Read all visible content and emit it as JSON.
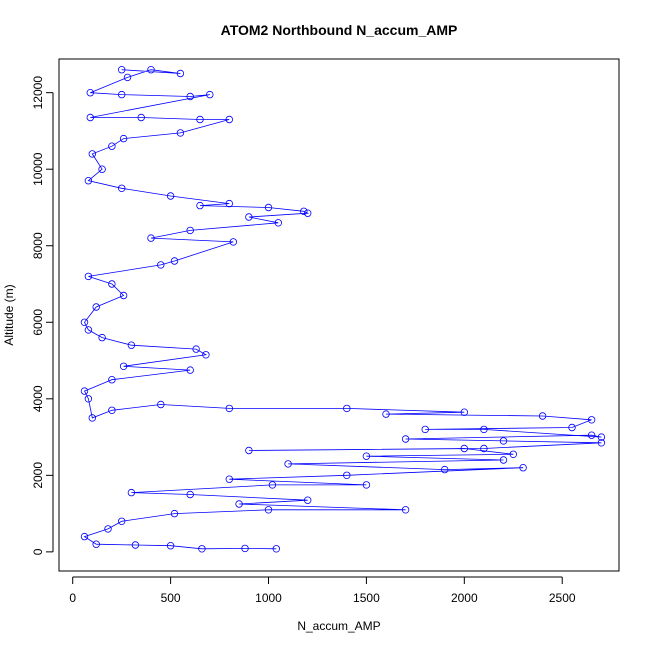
{
  "chart_data": {
    "type": "scatter",
    "title": "ATOM2 Northbound N_accum_AMP",
    "xlabel": "N_accum_AMP",
    "ylabel": "Altitude (m)",
    "xlim": [
      -70,
      2790
    ],
    "ylim": [
      -500,
      12880
    ],
    "x_ticks": [
      0,
      500,
      1000,
      1500,
      2000,
      2500
    ],
    "y_ticks": [
      0,
      2000,
      4000,
      6000,
      8000,
      10000,
      12000
    ],
    "grid": false,
    "legend": "none",
    "series": [
      {
        "marker": "open-circle",
        "line": "connected",
        "color": "#0000ff",
        "points": [
          [
            1040,
            80
          ],
          [
            880,
            90
          ],
          [
            660,
            80
          ],
          [
            500,
            160
          ],
          [
            320,
            180
          ],
          [
            120,
            200
          ],
          [
            60,
            400
          ],
          [
            180,
            600
          ],
          [
            250,
            800
          ],
          [
            520,
            1000
          ],
          [
            1000,
            1100
          ],
          [
            1700,
            1100
          ],
          [
            850,
            1250
          ],
          [
            1200,
            1350
          ],
          [
            600,
            1500
          ],
          [
            300,
            1550
          ],
          [
            1020,
            1750
          ],
          [
            1500,
            1750
          ],
          [
            800,
            1900
          ],
          [
            1400,
            2000
          ],
          [
            2300,
            2200
          ],
          [
            1900,
            2150
          ],
          [
            1100,
            2300
          ],
          [
            2200,
            2400
          ],
          [
            1500,
            2500
          ],
          [
            2250,
            2550
          ],
          [
            2000,
            2700
          ],
          [
            900,
            2650
          ],
          [
            2100,
            2700
          ],
          [
            2700,
            2850
          ],
          [
            2200,
            2900
          ],
          [
            1700,
            2950
          ],
          [
            2650,
            3050
          ],
          [
            2700,
            3000
          ],
          [
            2100,
            3200
          ],
          [
            1800,
            3200
          ],
          [
            2550,
            3250
          ],
          [
            2650,
            3450
          ],
          [
            2400,
            3550
          ],
          [
            1600,
            3600
          ],
          [
            2000,
            3650
          ],
          [
            1400,
            3750
          ],
          [
            800,
            3750
          ],
          [
            450,
            3850
          ],
          [
            200,
            3700
          ],
          [
            100,
            3500
          ],
          [
            80,
            4000
          ],
          [
            60,
            4200
          ],
          [
            200,
            4500
          ],
          [
            600,
            4750
          ],
          [
            260,
            4850
          ],
          [
            680,
            5150
          ],
          [
            630,
            5300
          ],
          [
            300,
            5400
          ],
          [
            150,
            5600
          ],
          [
            80,
            5800
          ],
          [
            60,
            6000
          ],
          [
            120,
            6400
          ],
          [
            260,
            6700
          ],
          [
            200,
            7000
          ],
          [
            80,
            7200
          ],
          [
            450,
            7500
          ],
          [
            520,
            7600
          ],
          [
            820,
            8100
          ],
          [
            400,
            8200
          ],
          [
            600,
            8400
          ],
          [
            1050,
            8600
          ],
          [
            900,
            8750
          ],
          [
            1200,
            8850
          ],
          [
            1180,
            8900
          ],
          [
            1000,
            9000
          ],
          [
            650,
            9050
          ],
          [
            800,
            9100
          ],
          [
            500,
            9300
          ],
          [
            250,
            9500
          ],
          [
            80,
            9700
          ],
          [
            150,
            10000
          ],
          [
            100,
            10400
          ],
          [
            200,
            10600
          ],
          [
            260,
            10800
          ],
          [
            550,
            10950
          ],
          [
            800,
            11300
          ],
          [
            650,
            11300
          ],
          [
            350,
            11350
          ],
          [
            90,
            11350
          ],
          [
            700,
            11950
          ],
          [
            600,
            11900
          ],
          [
            250,
            11950
          ],
          [
            90,
            12000
          ],
          [
            280,
            12400
          ],
          [
            400,
            12600
          ],
          [
            550,
            12500
          ],
          [
            250,
            12600
          ]
        ]
      }
    ]
  }
}
